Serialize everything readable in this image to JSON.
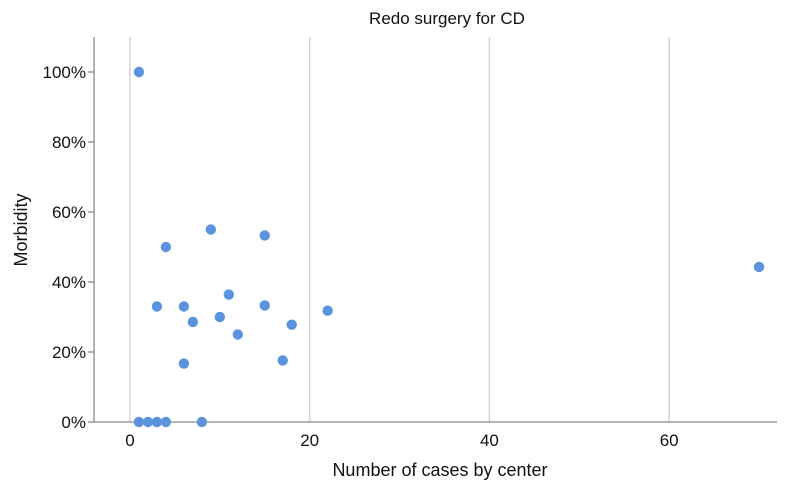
{
  "chart_data": {
    "type": "scatter",
    "title": "Redo surgery for CD",
    "xlabel": "Number of cases by center",
    "ylabel": "Morbidity",
    "xlim": [
      -4,
      72
    ],
    "ylim": [
      0,
      110
    ],
    "x_ticks": [
      0,
      20,
      40,
      60
    ],
    "y_ticks": [
      0,
      20,
      40,
      60,
      80,
      100
    ],
    "x_tick_labels": [
      "0",
      "20",
      "40",
      "60"
    ],
    "y_tick_labels": [
      "0%",
      "20%",
      "40%",
      "60%",
      "80%",
      "100%"
    ],
    "grid": "vertical lines at x ticks",
    "marker_color": "#5b93dc",
    "points": [
      {
        "x": 1,
        "y": 100
      },
      {
        "x": 1,
        "y": 0
      },
      {
        "x": 2,
        "y": 0
      },
      {
        "x": 3,
        "y": 0
      },
      {
        "x": 4,
        "y": 0
      },
      {
        "x": 8,
        "y": 0
      },
      {
        "x": 3,
        "y": 33
      },
      {
        "x": 4,
        "y": 50
      },
      {
        "x": 6,
        "y": 33
      },
      {
        "x": 6,
        "y": 16.7
      },
      {
        "x": 7,
        "y": 28.6
      },
      {
        "x": 9,
        "y": 55
      },
      {
        "x": 10,
        "y": 30
      },
      {
        "x": 11,
        "y": 36.4
      },
      {
        "x": 12,
        "y": 25
      },
      {
        "x": 15,
        "y": 53.3
      },
      {
        "x": 15,
        "y": 33.3
      },
      {
        "x": 17,
        "y": 17.6
      },
      {
        "x": 18,
        "y": 27.8
      },
      {
        "x": 22,
        "y": 31.8
      },
      {
        "x": 70,
        "y": 44.3
      }
    ]
  }
}
